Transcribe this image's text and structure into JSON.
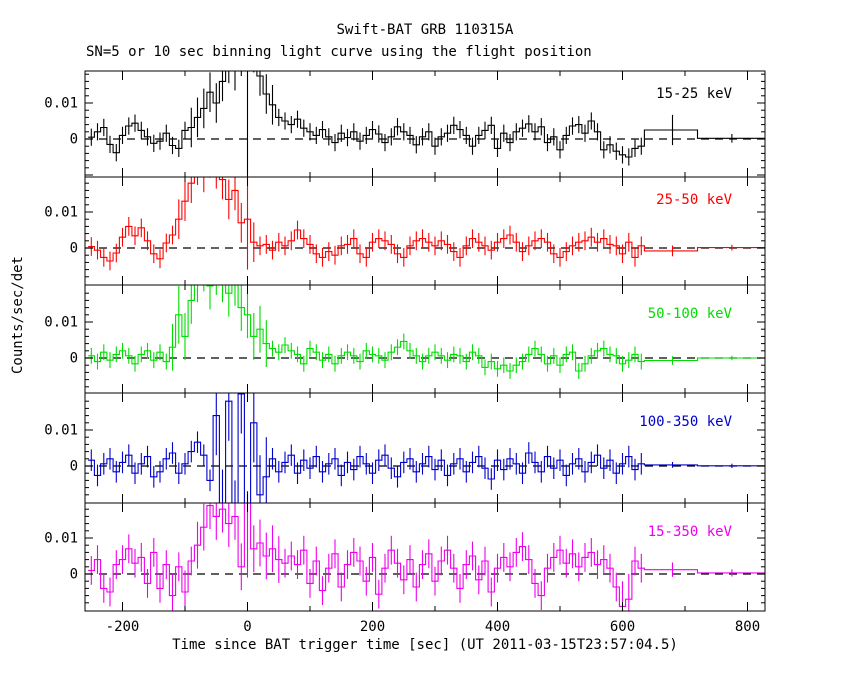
{
  "page": {
    "title": "Swift-BAT GRB 110315A",
    "subtitle": "SN=5 or 10 sec binning light curve using the flight position"
  },
  "chart_data": {
    "type": "line",
    "title": "Swift-BAT GRB 110315A",
    "subtitle": "SN=5 or 10 sec binning light curve using the flight position",
    "xlabel": "Time since BAT trigger time [sec] (UT 2011-03-15T23:57:04.5)",
    "ylabel": "Counts/sec/det",
    "xlim": [
      -260,
      828
    ],
    "panel_ylim": [
      -0.0105,
      0.0197
    ],
    "grid": false,
    "legend_position": "inside-top-right-per-panel",
    "x_major_ticks": [
      -200,
      0,
      200,
      400,
      600,
      800
    ],
    "x_tick_labels": [
      "-200",
      "0",
      "200",
      "400",
      "600",
      "800"
    ],
    "x_minor_step": 100,
    "y_major_values": [
      0.01,
      0
    ],
    "y_tick_labels": [
      "0.01",
      "0"
    ],
    "y_minor_step": 0.002,
    "value_unit": "counts/sec/det",
    "values_scale": 0.001,
    "bin_start": -255,
    "bin_width": 10,
    "zero_line": "dashed",
    "series": [
      {
        "name": "15-25 keV",
        "color": "#000000",
        "err_base": 2.4,
        "err_burst": 5.5,
        "burst_window": [
          -90,
          40
        ],
        "err_spikes": [
          [
            0,
            30
          ]
        ],
        "values": [
          0.5,
          2.0,
          3.2,
          -1.5,
          -3.8,
          1.0,
          3.6,
          4.4,
          2.4,
          0.6,
          -1.2,
          -0.6,
          1.6,
          -1.8,
          -2.6,
          2.4,
          3.2,
          6.0,
          8.5,
          13.0,
          10.0,
          16.0,
          21.0,
          19.0,
          23.0,
          20.0,
          24.0,
          17.5,
          12.5,
          9.5,
          6.0,
          5.0,
          4.0,
          5.5,
          3.0,
          2.0,
          1.0,
          2.6,
          0.6,
          -1.0,
          1.6,
          0.4,
          2.0,
          -0.6,
          1.0,
          2.6,
          1.4,
          -1.0,
          0.6,
          3.4,
          2.0,
          1.0,
          -1.6,
          0.6,
          2.0,
          -2.0,
          0.6,
          1.6,
          3.8,
          2.6,
          1.0,
          -2.0,
          1.0,
          2.4,
          3.8,
          -2.6,
          1.6,
          -1.0,
          2.0,
          3.0,
          4.2,
          2.0,
          3.4,
          -1.0,
          0.6,
          -3.0,
          1.0,
          3.6,
          4.0,
          1.6,
          5.0,
          2.0,
          -3.0,
          -1.6,
          -3.4,
          -4.4,
          -5.0,
          -2.6,
          -2.0
        ],
        "tail_bins": [
          [
            640,
            720,
            2.5,
            4.2
          ],
          [
            720,
            830,
            0.2,
            1.2
          ]
        ]
      },
      {
        "name": "25-50 keV",
        "color": "#ff0000",
        "err_base": 2.6,
        "err_burst": 5.5,
        "burst_window": [
          -110,
          10
        ],
        "err_spikes": [
          [
            0,
            14
          ]
        ],
        "values": [
          0.4,
          -0.6,
          -2.6,
          -3.6,
          -1.4,
          3.0,
          6.0,
          3.4,
          5.6,
          2.0,
          -1.6,
          -3.0,
          1.4,
          3.6,
          8.0,
          13.0,
          18.0,
          23.0,
          21.0,
          25.0,
          22.0,
          19.0,
          13.5,
          16.0,
          7.0,
          8.0,
          1.6,
          0.6,
          1.0,
          -0.6,
          1.6,
          0.6,
          2.0,
          5.0,
          2.6,
          1.0,
          -1.6,
          -2.6,
          -1.0,
          -2.0,
          0.6,
          1.0,
          2.6,
          -1.6,
          -2.6,
          1.6,
          2.6,
          2.0,
          1.0,
          -1.6,
          -2.6,
          0.6,
          2.0,
          2.6,
          1.6,
          0.6,
          2.0,
          1.0,
          -1.0,
          -2.6,
          0.6,
          2.6,
          1.6,
          0.6,
          -0.6,
          1.6,
          2.6,
          3.6,
          1.6,
          -1.0,
          0.6,
          2.0,
          2.6,
          1.6,
          -1.6,
          -2.6,
          -1.0,
          0.6,
          1.6,
          2.0,
          3.0,
          1.6,
          2.6,
          1.0,
          0.6,
          -1.6,
          1.6,
          -2.6,
          0.6
        ],
        "tail_bins": [
          [
            640,
            720,
            -0.8,
            1.5
          ],
          [
            720,
            830,
            0.1,
            0.8
          ]
        ]
      },
      {
        "name": "50-100 keV",
        "color": "#00dd00",
        "err_base": 2.2,
        "err_burst": 6.5,
        "burst_window": [
          -120,
          30
        ],
        "err_spikes": [
          [
            -110,
            8
          ]
        ],
        "values": [
          0.6,
          -1.0,
          1.6,
          -0.6,
          1.0,
          2.0,
          0.6,
          -1.6,
          1.0,
          2.0,
          -0.6,
          1.6,
          -1.0,
          3.0,
          12.0,
          6.0,
          16.0,
          22.0,
          25.0,
          20.0,
          24.0,
          22.0,
          18.0,
          21.0,
          14.0,
          12.0,
          6.0,
          8.0,
          4.0,
          2.6,
          1.6,
          3.6,
          2.0,
          1.0,
          -1.6,
          2.6,
          1.6,
          -0.6,
          1.0,
          -1.6,
          0.6,
          1.6,
          0.6,
          -1.0,
          2.0,
          1.0,
          0.6,
          -0.6,
          1.6,
          3.0,
          4.6,
          2.0,
          0.6,
          -1.0,
          0.6,
          1.6,
          0.6,
          -0.6,
          1.0,
          0.6,
          -1.0,
          1.6,
          0.6,
          -2.6,
          -1.0,
          -3.0,
          -2.0,
          -3.6,
          -2.0,
          -1.0,
          1.0,
          2.6,
          1.0,
          -1.6,
          0.6,
          -2.0,
          1.0,
          1.6,
          -3.6,
          -1.6,
          0.6,
          2.0,
          2.6,
          1.0,
          0.6,
          -1.6,
          -0.6,
          1.0,
          -1.0
        ],
        "tail_bins": [
          [
            640,
            720,
            -0.7,
            1.2
          ],
          [
            720,
            830,
            0.0,
            0.6
          ]
        ]
      },
      {
        "name": "100-350 keV",
        "color": "#0000cc",
        "err_base": 3.0,
        "err_burst": 11.0,
        "burst_window": [
          -55,
          30
        ],
        "err_spikes": [],
        "values": [
          1.6,
          -2.6,
          0.6,
          2.0,
          -1.6,
          1.0,
          3.0,
          -2.0,
          0.6,
          2.6,
          -3.0,
          -1.6,
          2.0,
          3.6,
          -2.0,
          0.6,
          4.0,
          6.6,
          3.0,
          -4.0,
          14.0,
          -12.0,
          18.0,
          -15.0,
          20.0,
          -18.0,
          12.0,
          -8.0,
          -3.0,
          2.0,
          -1.6,
          1.0,
          3.0,
          -2.0,
          1.6,
          -0.6,
          2.6,
          -1.6,
          0.6,
          2.0,
          -2.6,
          1.0,
          -1.0,
          2.6,
          0.6,
          -2.0,
          1.6,
          3.0,
          -0.6,
          -3.0,
          1.0,
          2.0,
          -1.6,
          0.6,
          2.6,
          -1.0,
          1.6,
          -2.6,
          0.6,
          2.0,
          -1.6,
          1.0,
          2.6,
          -0.6,
          -3.6,
          1.6,
          -1.0,
          2.0,
          0.6,
          -2.0,
          3.6,
          1.0,
          -1.6,
          2.6,
          -0.6,
          1.6,
          -2.6,
          0.6,
          2.0,
          -1.6,
          1.0,
          3.0,
          -0.6,
          1.6,
          -2.0,
          0.6,
          2.6,
          -1.0,
          0.6
        ],
        "tail_bins": [
          [
            640,
            720,
            0.3,
            0.8
          ],
          [
            720,
            830,
            0.05,
            0.6
          ]
        ]
      },
      {
        "name": "15-350 keV",
        "color": "#ee00ee",
        "err_base": 4.0,
        "err_burst": 6.5,
        "burst_window": [
          -85,
          50
        ],
        "err_spikes": [
          [
            0,
            22
          ],
          [
            -120,
            6
          ],
          [
            -100,
            6
          ],
          [
            600,
            7
          ],
          [
            610,
            7
          ]
        ],
        "values": [
          1.0,
          4.0,
          -4.0,
          -5.0,
          2.6,
          4.0,
          7.0,
          3.0,
          4.6,
          -2.6,
          6.0,
          -4.0,
          2.6,
          -6.0,
          2.0,
          -5.0,
          3.6,
          8.0,
          13.0,
          19.0,
          16.0,
          18.0,
          14.0,
          16.0,
          2.0,
          21.0,
          7.0,
          8.6,
          5.0,
          7.0,
          4.0,
          3.0,
          5.0,
          2.6,
          6.6,
          -2.6,
          3.6,
          -4.6,
          1.6,
          5.6,
          -3.6,
          2.6,
          6.0,
          3.6,
          -2.0,
          4.6,
          -5.6,
          1.6,
          6.6,
          3.0,
          -1.6,
          4.0,
          -3.6,
          2.6,
          5.6,
          -2.0,
          3.6,
          6.6,
          1.6,
          -4.0,
          2.6,
          5.0,
          -1.6,
          3.6,
          -5.0,
          1.6,
          4.6,
          2.0,
          6.0,
          7.6,
          4.0,
          -2.6,
          -6.0,
          1.6,
          4.6,
          6.6,
          3.0,
          5.6,
          2.0,
          4.6,
          6.0,
          2.6,
          4.0,
          1.6,
          -3.6,
          -9.0,
          -7.0,
          3.6,
          1.6
        ],
        "tail_bins": [
          [
            640,
            720,
            1.2,
            2.0
          ],
          [
            720,
            830,
            0.3,
            1.0
          ]
        ]
      }
    ]
  }
}
